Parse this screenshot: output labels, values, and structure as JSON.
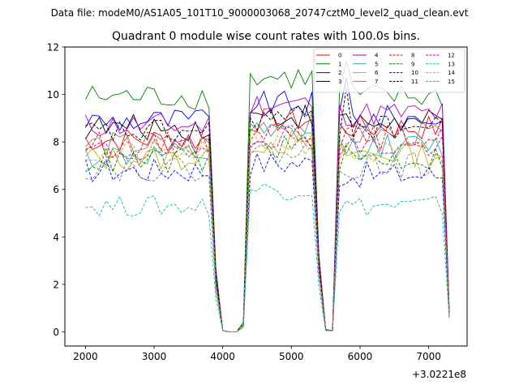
{
  "suptitle": "Data file: modeM0/AS1A05_101T10_9000003068_20747cztM0_level2_quad_clean.evt",
  "chart_data": {
    "type": "line",
    "title": "Quadrant 0 module wise count rates with 100.0s bins.",
    "xlabel": "",
    "ylabel": "",
    "x_offset_label": "+3.0221e8",
    "xlim": [
      1700,
      7560
    ],
    "ylim": [
      -0.6,
      12
    ],
    "xticks": [
      2000,
      3000,
      4000,
      5000,
      6000,
      7000
    ],
    "xtick_labels": [
      "2000",
      "3000",
      "4000",
      "5000",
      "6000",
      "7000"
    ],
    "yticks": [
      0,
      2,
      4,
      6,
      8,
      10,
      12
    ],
    "ytick_labels": [
      "0",
      "2",
      "4",
      "6",
      "8",
      "10",
      "12"
    ],
    "legend_position": "upper-right",
    "legend_columns": 4,
    "segments": [
      {
        "x_start": 2000,
        "x_end": 3800
      },
      {
        "x_start": 4400,
        "x_end": 5300
      },
      {
        "x_start": 5700,
        "x_end": 7200
      }
    ],
    "gap_x": [
      3900,
      4000,
      4100,
      4200,
      4300,
      5400,
      5500,
      5600,
      7300
    ],
    "series": [
      {
        "name": "0",
        "color": "#ff0000",
        "dash": "solid",
        "seg_levels": [
          8.1,
          8.9,
          8.6
        ],
        "gap_values": [
          2.2,
          0.05,
          0.0,
          0.0,
          0.3,
          3.0,
          0.08,
          0.05,
          0.8
        ]
      },
      {
        "name": "1",
        "color": "#008000",
        "dash": "solid",
        "seg_levels": [
          9.9,
          10.7,
          9.9
        ],
        "gap_values": [
          2.7,
          0.05,
          0.0,
          0.0,
          0.4,
          3.3,
          0.1,
          0.05,
          0.9
        ]
      },
      {
        "name": "2",
        "color": "#0000ff",
        "dash": "solid",
        "seg_levels": [
          8.9,
          9.6,
          9.0
        ],
        "gap_values": [
          2.4,
          0.05,
          0.0,
          0.0,
          0.3,
          3.1,
          0.08,
          0.05,
          0.8
        ]
      },
      {
        "name": "3",
        "color": "#000000",
        "dash": "solid",
        "seg_levels": [
          8.6,
          9.1,
          8.8
        ],
        "gap_values": [
          2.4,
          0.05,
          0.0,
          0.0,
          0.3,
          3.0,
          0.08,
          0.05,
          0.8
        ]
      },
      {
        "name": "4",
        "color": "#bf00bf",
        "dash": "solid",
        "seg_levels": [
          8.7,
          9.6,
          9.2
        ],
        "gap_values": [
          2.4,
          0.05,
          0.0,
          0.0,
          0.3,
          3.1,
          0.08,
          0.05,
          0.8
        ]
      },
      {
        "name": "5",
        "color": "#20b2aa",
        "dash": "solid",
        "seg_levels": [
          7.4,
          8.3,
          7.8
        ],
        "gap_values": [
          2.0,
          0.05,
          0.0,
          0.0,
          0.3,
          2.7,
          0.07,
          0.05,
          0.7
        ]
      },
      {
        "name": "6",
        "color": "#bdb700",
        "dash": "solid",
        "seg_levels": [
          7.3,
          8.0,
          7.5
        ],
        "gap_values": [
          2.0,
          0.05,
          0.0,
          0.0,
          0.3,
          2.6,
          0.07,
          0.05,
          0.7
        ]
      },
      {
        "name": "7",
        "color": "#808080",
        "dash": "solid",
        "seg_levels": [
          7.9,
          8.7,
          8.3
        ],
        "gap_values": [
          2.1,
          0.05,
          0.0,
          0.0,
          0.3,
          2.9,
          0.07,
          0.05,
          0.7
        ]
      },
      {
        "name": "8",
        "color": "#ff0000",
        "dash": "dashed",
        "seg_levels": [
          7.9,
          8.5,
          8.2
        ],
        "gap_values": [
          2.1,
          0.05,
          0.0,
          0.0,
          0.3,
          2.9,
          0.07,
          0.05,
          0.7
        ]
      },
      {
        "name": "9",
        "color": "#008000",
        "dash": "dashed",
        "seg_levels": [
          7.2,
          7.8,
          7.3
        ],
        "gap_values": [
          1.9,
          0.05,
          0.0,
          0.0,
          0.3,
          2.6,
          0.07,
          0.05,
          0.7
        ]
      },
      {
        "name": "10",
        "color": "#0000ff",
        "dash": "dashed",
        "seg_levels": [
          6.8,
          7.1,
          6.6
        ],
        "gap_values": [
          1.8,
          0.05,
          0.0,
          0.0,
          0.2,
          2.4,
          0.06,
          0.05,
          0.6
        ]
      },
      {
        "name": "11",
        "color": "#000000",
        "dash": "dashed",
        "seg_levels": [
          8.4,
          9.0,
          8.6
        ],
        "gap_values": [
          2.3,
          0.05,
          0.0,
          0.0,
          0.3,
          3.0,
          0.08,
          0.05,
          0.8
        ]
      },
      {
        "name": "12",
        "color": "#bf00bf",
        "dash": "dashed",
        "seg_levels": [
          7.6,
          8.3,
          7.8
        ],
        "gap_values": [
          2.0,
          0.05,
          0.0,
          0.0,
          0.3,
          2.7,
          0.07,
          0.05,
          0.7
        ]
      },
      {
        "name": "13",
        "color": "#00bfbf",
        "dash": "dashed",
        "seg_levels": [
          5.3,
          6.0,
          5.3
        ],
        "gap_values": [
          1.4,
          0.05,
          0.0,
          0.0,
          0.2,
          1.9,
          0.05,
          0.05,
          0.5
        ]
      },
      {
        "name": "14",
        "color": "#bdb700",
        "dash": "dashed",
        "seg_levels": [
          7.5,
          8.0,
          7.5
        ],
        "gap_values": [
          2.0,
          0.05,
          0.0,
          0.0,
          0.3,
          2.6,
          0.07,
          0.05,
          0.7
        ]
      },
      {
        "name": "15",
        "color": "#808080",
        "dash": "dashed",
        "seg_levels": [
          6.9,
          7.5,
          7.0
        ],
        "gap_values": [
          1.8,
          0.05,
          0.0,
          0.0,
          0.2,
          2.4,
          0.06,
          0.05,
          0.6
        ]
      }
    ]
  }
}
